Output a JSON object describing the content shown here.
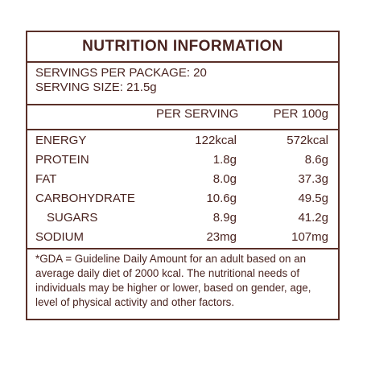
{
  "title": "NUTRITION INFORMATION",
  "servings": {
    "per_package": "SERVINGS PER PACKAGE: 20",
    "size": "SERVING SIZE: 21.5g"
  },
  "columns": {
    "per_serving": "PER SERVING",
    "per_100g": "PER 100g"
  },
  "rows": [
    {
      "name": "ENERGY",
      "per_serving": "122kcal",
      "per_100g": "572kcal"
    },
    {
      "name": "PROTEIN",
      "per_serving": "1.8g",
      "per_100g": "8.6g"
    },
    {
      "name": "FAT",
      "per_serving": "8.0g",
      "per_100g": "37.3g"
    },
    {
      "name": "CARBOHYDRATE",
      "per_serving": "10.6g",
      "per_100g": "49.5g"
    },
    {
      "name": "SUGARS",
      "per_serving": "8.9g",
      "per_100g": "41.2g"
    },
    {
      "name": "SODIUM",
      "per_serving": "23mg",
      "per_100g": "107mg"
    }
  ],
  "note": "*GDA = Guideline Daily Amount for an adult based on an average daily diet of 2000 kcal. The nutritional needs of individuals may be higher or lower, based on gender, age, level of physical activity and other factors.",
  "colors": {
    "border": "#5a2f28",
    "text": "#4a2420"
  }
}
